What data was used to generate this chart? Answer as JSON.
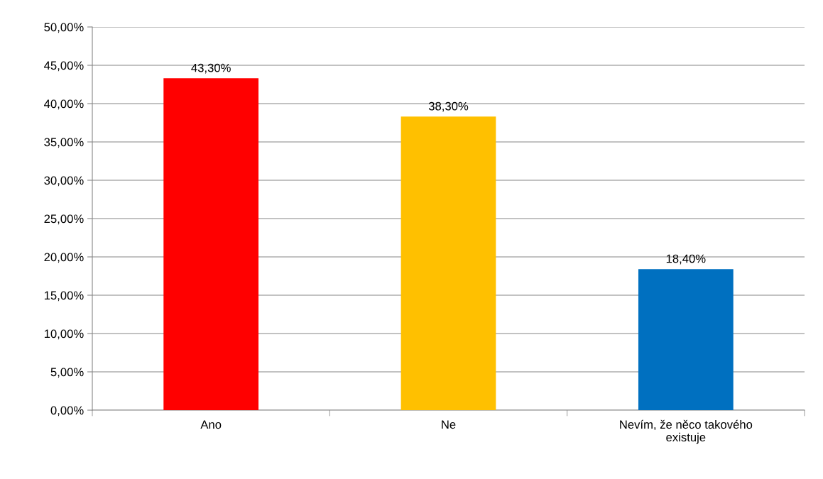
{
  "chart_data": {
    "type": "bar",
    "categories": [
      "Ano",
      "Ne",
      "Nevím, že něco takového\nexistuje"
    ],
    "values": [
      43.3,
      38.3,
      18.4
    ],
    "colors": [
      "#ff0000",
      "#ffc000",
      "#0070c0"
    ],
    "value_labels": [
      "43,30%",
      "38,30%",
      "18,40%"
    ],
    "ylim": [
      0,
      50
    ],
    "yticks": [
      {
        "value": 0,
        "label": "0,00%"
      },
      {
        "value": 5,
        "label": "5,00%"
      },
      {
        "value": 10,
        "label": "10,00%"
      },
      {
        "value": 15,
        "label": "15,00%"
      },
      {
        "value": 20,
        "label": "20,00%"
      },
      {
        "value": 25,
        "label": "25,00%"
      },
      {
        "value": 30,
        "label": "30,00%"
      },
      {
        "value": 35,
        "label": "35,00%"
      },
      {
        "value": 40,
        "label": "40,00%"
      },
      {
        "value": 45,
        "label": "45,00%"
      },
      {
        "value": 50,
        "label": "50,00%"
      }
    ],
    "grid": "y",
    "legend": false
  }
}
